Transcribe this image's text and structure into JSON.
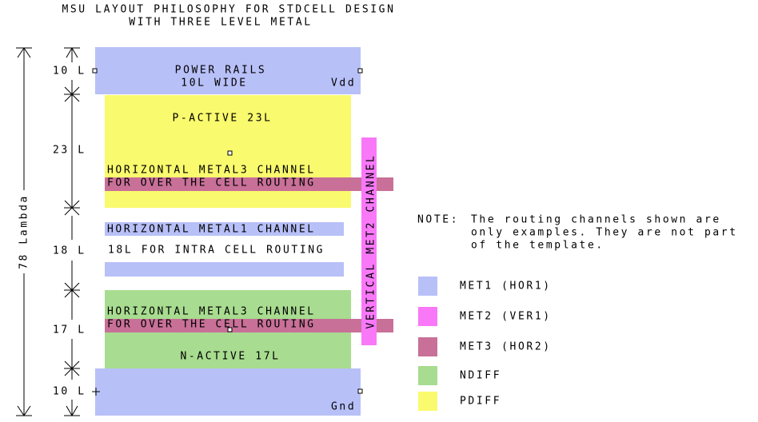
{
  "header": {
    "title": [
      "MSU LAYOUT PHILOSOPHY FOR STDCELL DESIGN",
      "WITH THREE LEVEL METAL"
    ]
  },
  "layout": {
    "power_rail": [
      "POWER RAILS",
      "10L WIDE"
    ],
    "vdd": "Vdd",
    "p_active": "P-ACTIVE 23L",
    "metal3_top": [
      "HORIZONTAL METAL3 CHANNEL",
      "FOR OVER THE CELL ROUTING"
    ],
    "metal1": [
      "HORIZONTAL METAL1 CHANNEL",
      "18L FOR INTRA CELL ROUTING"
    ],
    "metal3_bottom": [
      "HORIZONTAL METAL3 CHANNEL",
      "FOR OVER THE CELL ROUTING"
    ],
    "n_active": "N-ACTIVE 17L",
    "gnd": "Gnd",
    "metal2": "VERTICAL MET2 CHANNEL"
  },
  "dimensions": {
    "total": "78 Lambda",
    "rows": [
      "10 L",
      "23 L",
      "18 L",
      "17 L",
      "10 L"
    ]
  },
  "note": {
    "label": "NOTE:",
    "lines": [
      "The routing channels shown are",
      "only examples. They are not part",
      "of the template."
    ]
  },
  "legend": [
    "MET1 (HOR1)",
    "MET2 (VER1)",
    "MET3 (HOR2)",
    "NDIFF",
    "PDIFF"
  ]
}
